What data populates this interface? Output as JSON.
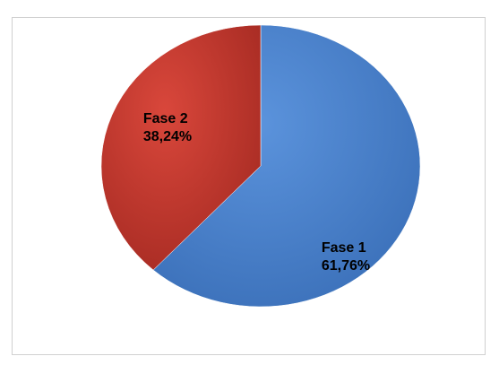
{
  "chart_data": {
    "type": "pie",
    "slices": [
      {
        "label": "Fase 1",
        "value": 61.76,
        "value_label": "61,76%",
        "color": "#4a7fc9"
      },
      {
        "label": "Fase 2",
        "value": 38.24,
        "value_label": "38,24%",
        "color": "#c0392b"
      }
    ],
    "start_angle_deg": 0,
    "direction": "clockwise",
    "legend": "none"
  }
}
